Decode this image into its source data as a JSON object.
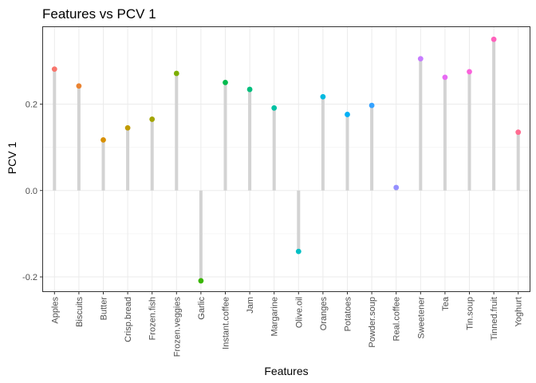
{
  "chart_data": {
    "type": "lollipop",
    "title": "Features vs PCV 1",
    "xlabel": "Features",
    "ylabel": "PCV 1",
    "ylim": [
      -0.235,
      0.38
    ],
    "yticks": [
      -0.2,
      0.0,
      0.2
    ],
    "ytick_labels": [
      "-0.2",
      "0.0",
      "0.2"
    ],
    "grid": true,
    "legend": "none",
    "stick_color": "#d3d3d3",
    "categories": [
      "Apples",
      "Biscuits",
      "Butter",
      "Crisp.bread",
      "Frozen.fish",
      "Frozen.veggies",
      "Garlic",
      "Instant.coffee",
      "Jam",
      "Margarine",
      "Olive.oil",
      "Oranges",
      "Potatoes",
      "Powder.soup",
      "Real.coffee",
      "Sweetener",
      "Tea",
      "Tin.soup",
      "Tinned.fruit",
      "Yoghurt"
    ],
    "values": [
      0.281,
      0.242,
      0.117,
      0.145,
      0.165,
      0.271,
      -0.209,
      0.25,
      0.234,
      0.191,
      -0.141,
      0.217,
      0.176,
      0.197,
      0.007,
      0.305,
      0.262,
      0.275,
      0.35,
      0.135
    ],
    "colors": [
      "#F8766D",
      "#EA8331",
      "#D89000",
      "#C09B00",
      "#A3A500",
      "#7CAE00",
      "#39B600",
      "#00BB4E",
      "#00BF7D",
      "#00C1A3",
      "#00BFC4",
      "#00BAE0",
      "#00B0F6",
      "#35A2FF",
      "#9590FF",
      "#C77CFF",
      "#E76BF3",
      "#FA62DB",
      "#FF62BC",
      "#FF6C91"
    ]
  }
}
